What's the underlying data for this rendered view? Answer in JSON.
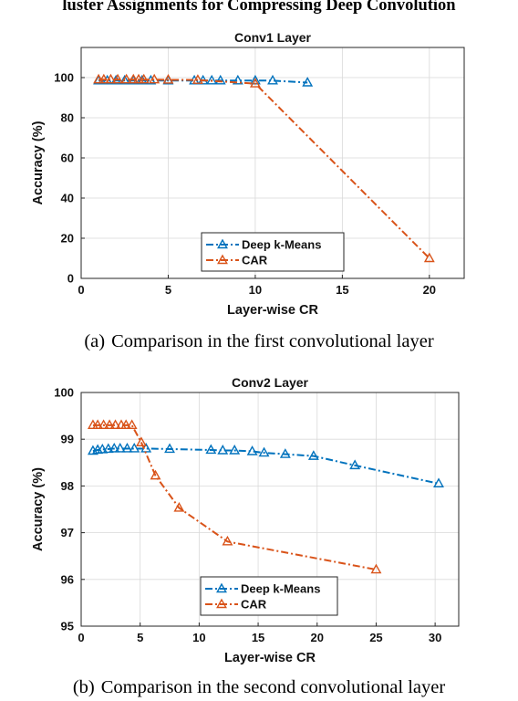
{
  "header": {
    "title": "luster Assignments for Compressing Deep Convolution"
  },
  "figures": [
    {
      "caption_label": "(a)",
      "caption_text": "Comparison in the first convolutional layer"
    },
    {
      "caption_label": "(b)",
      "caption_text": "Comparison in the second convolutional layer"
    }
  ],
  "colors": {
    "deep_kmeans": "#0072BD",
    "car": "#D95319",
    "grid": "#d9d9d9",
    "axis": "#262626"
  },
  "chart_data": [
    {
      "type": "line",
      "title": "Conv1 Layer",
      "xlabel": "Layer-wise CR",
      "ylabel": "Accuracy (%)",
      "xlim": [
        0,
        22
      ],
      "ylim": [
        0,
        115
      ],
      "xticks": [
        0,
        5,
        10,
        15,
        20
      ],
      "yticks": [
        0,
        20,
        40,
        60,
        80,
        100
      ],
      "grid": true,
      "legend_position": "bottom-right",
      "series": [
        {
          "name": "Deep k-Means",
          "color_key": "deep_kmeans",
          "x": [
            1.0,
            1.5,
            2.0,
            2.5,
            3.0,
            3.5,
            4.0,
            5.0,
            6.5,
            7.0,
            7.5,
            8.0,
            9.0,
            10.0,
            11.0,
            13.0
          ],
          "y": [
            98.5,
            98.5,
            98.5,
            98.5,
            98.5,
            98.5,
            98.5,
            98.5,
            98.5,
            98.5,
            98.5,
            98.5,
            98.5,
            98.5,
            98.5,
            97.5
          ]
        },
        {
          "name": "CAR",
          "color_key": "car",
          "x": [
            1.0,
            1.3,
            1.7,
            2.1,
            2.6,
            3.0,
            3.3,
            3.6,
            4.2,
            5.0,
            6.7,
            10.0,
            20.0
          ],
          "y": [
            99.0,
            99.0,
            99.0,
            99.0,
            99.0,
            99.0,
            99.0,
            99.0,
            99.0,
            98.9,
            98.8,
            97.0,
            10.0
          ]
        }
      ]
    },
    {
      "type": "line",
      "title": "Conv2 Layer",
      "xlabel": "Layer-wise CR",
      "ylabel": "Accuracy (%)",
      "xlim": [
        0,
        32
      ],
      "ylim": [
        95,
        100
      ],
      "xticks": [
        0,
        5,
        10,
        15,
        20,
        25,
        30
      ],
      "yticks": [
        95,
        96,
        97,
        98,
        99,
        100
      ],
      "grid": true,
      "legend_position": "bottom-center",
      "series": [
        {
          "name": "Deep k-Means",
          "color_key": "deep_kmeans",
          "x": [
            1.0,
            1.4,
            1.8,
            2.3,
            2.8,
            3.3,
            3.9,
            4.5,
            5.5,
            7.5,
            11.0,
            12.0,
            13.0,
            14.5,
            15.5,
            17.3,
            19.7,
            23.2,
            30.3
          ],
          "y": [
            98.75,
            98.77,
            98.78,
            98.79,
            98.8,
            98.8,
            98.8,
            98.8,
            98.8,
            98.79,
            98.77,
            98.76,
            98.76,
            98.74,
            98.71,
            98.68,
            98.64,
            98.44,
            98.05
          ]
        },
        {
          "name": "CAR",
          "color_key": "car",
          "x": [
            1.0,
            1.4,
            1.9,
            2.4,
            2.9,
            3.4,
            3.8,
            4.3,
            5.1,
            6.3,
            8.3,
            12.4,
            25.0
          ],
          "y": [
            99.3,
            99.3,
            99.3,
            99.3,
            99.3,
            99.3,
            99.3,
            99.3,
            98.93,
            98.22,
            97.53,
            96.81,
            96.21
          ]
        }
      ]
    }
  ]
}
